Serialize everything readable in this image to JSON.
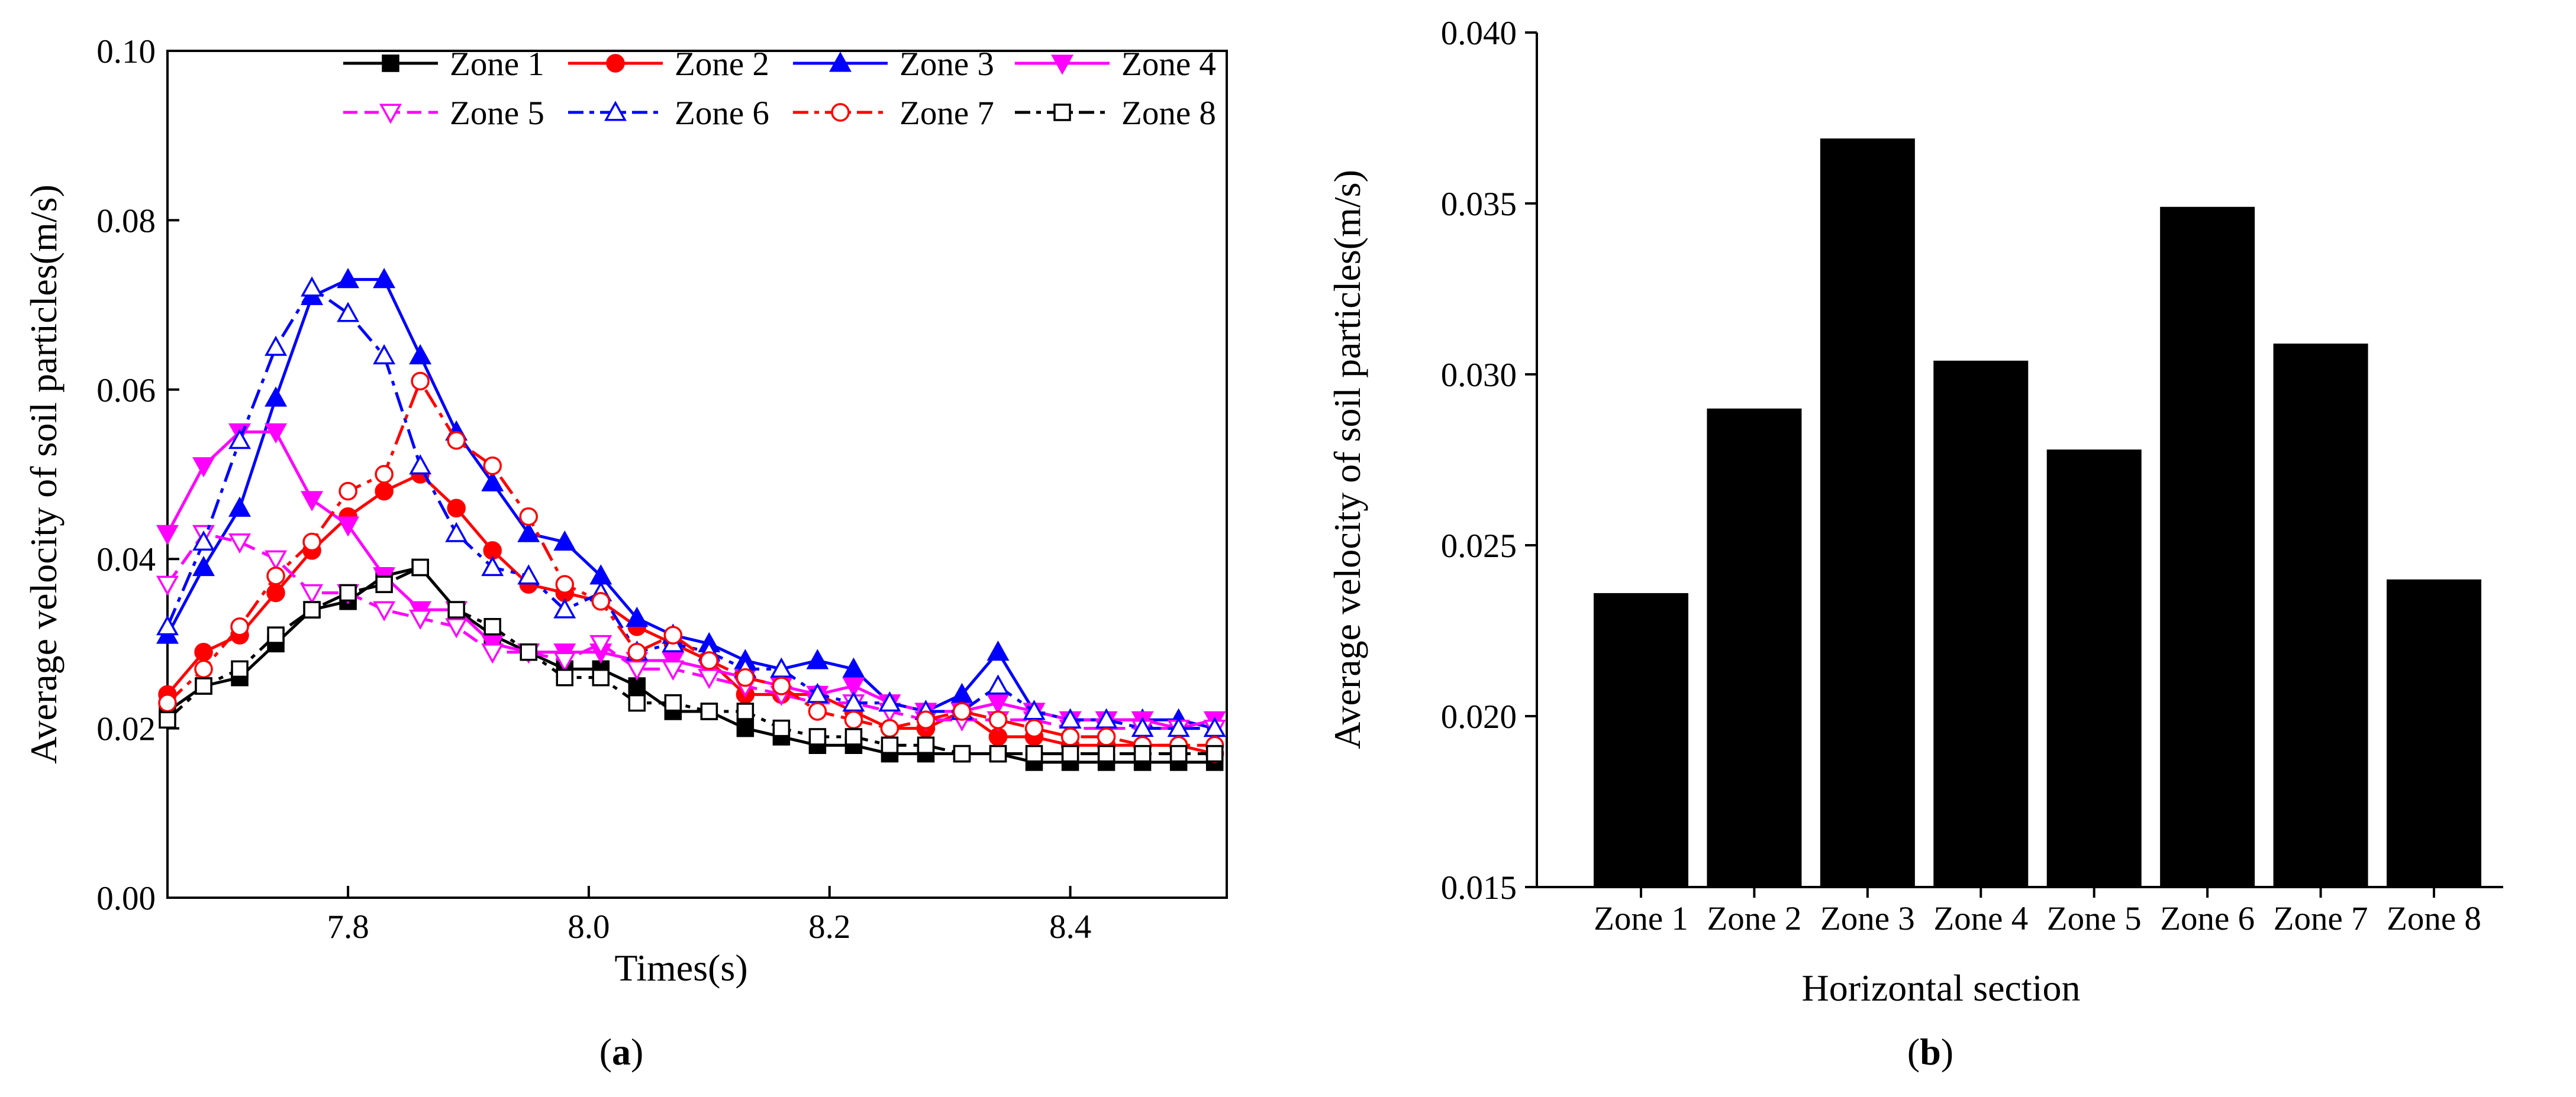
{
  "chart_data": [
    {
      "type": "line",
      "panel_label": "(a)",
      "panel_letter": "a",
      "xlabel": "Times(s)",
      "ylabel": "Average velocity of soil particles(m/s)",
      "xlim": [
        7.65,
        8.53
      ],
      "ylim": [
        0.0,
        0.1
      ],
      "xticks": [
        7.8,
        8.0,
        8.2,
        8.4
      ],
      "xtick_labels": [
        "7.8",
        "8.0",
        "8.2",
        "8.4"
      ],
      "yticks": [
        0.0,
        0.02,
        0.04,
        0.06,
        0.08,
        0.1
      ],
      "ytick_labels": [
        "0.00",
        "0.02",
        "0.04",
        "0.06",
        "0.08",
        "0.10"
      ],
      "legend_position": "top-right",
      "x": [
        7.65,
        7.68,
        7.71,
        7.74,
        7.77,
        7.8,
        7.83,
        7.86,
        7.89,
        7.92,
        7.95,
        7.98,
        8.01,
        8.04,
        8.07,
        8.1,
        8.13,
        8.16,
        8.19,
        8.22,
        8.25,
        8.28,
        8.31,
        8.34,
        8.37,
        8.4,
        8.43,
        8.46,
        8.49,
        8.52
      ],
      "series": [
        {
          "name": "Zone 1",
          "color": "#000000",
          "marker": "square-filled",
          "dash": "solid",
          "values": [
            0.022,
            0.025,
            0.026,
            0.03,
            0.034,
            0.035,
            0.038,
            0.039,
            0.034,
            0.031,
            0.029,
            0.027,
            0.027,
            0.025,
            0.022,
            0.022,
            0.02,
            0.019,
            0.018,
            0.018,
            0.017,
            0.017,
            0.017,
            0.017,
            0.016,
            0.016,
            0.016,
            0.016,
            0.016,
            0.016
          ]
        },
        {
          "name": "Zone 2",
          "color": "#ff0000",
          "marker": "circle-filled",
          "dash": "solid",
          "values": [
            0.024,
            0.029,
            0.031,
            0.036,
            0.041,
            0.045,
            0.048,
            0.05,
            0.046,
            0.041,
            0.037,
            0.036,
            0.035,
            0.032,
            0.03,
            0.028,
            0.024,
            0.024,
            0.024,
            0.022,
            0.02,
            0.02,
            0.022,
            0.019,
            0.019,
            0.018,
            0.018,
            0.018,
            0.018,
            0.017
          ]
        },
        {
          "name": "Zone 3",
          "color": "#0000ff",
          "marker": "triangle-filled",
          "dash": "solid",
          "values": [
            0.031,
            0.039,
            0.046,
            0.059,
            0.071,
            0.073,
            0.073,
            0.064,
            0.055,
            0.049,
            0.043,
            0.042,
            0.038,
            0.033,
            0.031,
            0.03,
            0.028,
            0.027,
            0.028,
            0.027,
            0.023,
            0.022,
            0.024,
            0.029,
            0.022,
            0.021,
            0.021,
            0.021,
            0.021,
            0.02
          ]
        },
        {
          "name": "Zone 4",
          "color": "#ff00ff",
          "marker": "triangle-down-filled",
          "dash": "solid",
          "values": [
            0.043,
            0.051,
            0.055,
            0.055,
            0.047,
            0.044,
            0.038,
            0.034,
            0.034,
            0.03,
            0.029,
            0.029,
            0.029,
            0.028,
            0.028,
            0.027,
            0.026,
            0.025,
            0.024,
            0.025,
            0.023,
            0.022,
            0.022,
            0.023,
            0.022,
            0.021,
            0.021,
            0.021,
            0.02,
            0.021
          ]
        },
        {
          "name": "Zone 5",
          "color": "#ff00ff",
          "marker": "triangle-down-open",
          "dash": "dash",
          "values": [
            0.037,
            0.043,
            0.042,
            0.04,
            0.036,
            0.036,
            0.034,
            0.033,
            0.032,
            0.029,
            0.029,
            0.028,
            0.03,
            0.027,
            0.027,
            0.026,
            0.025,
            0.024,
            0.023,
            0.023,
            0.022,
            0.021,
            0.021,
            0.021,
            0.021,
            0.02,
            0.02,
            0.02,
            0.02,
            0.02
          ]
        },
        {
          "name": "Zone 6",
          "color": "#0000ff",
          "marker": "triangle-open",
          "dash": "dashdot",
          "values": [
            0.032,
            0.042,
            0.054,
            0.065,
            0.072,
            0.069,
            0.064,
            0.051,
            0.043,
            0.039,
            0.038,
            0.034,
            0.036,
            0.029,
            0.03,
            0.029,
            0.027,
            0.027,
            0.024,
            0.023,
            0.023,
            0.022,
            0.022,
            0.025,
            0.022,
            0.021,
            0.021,
            0.02,
            0.02,
            0.02
          ]
        },
        {
          "name": "Zone 7",
          "color": "#ff0000",
          "marker": "circle-open",
          "dash": "dashdot",
          "values": [
            0.023,
            0.027,
            0.032,
            0.038,
            0.042,
            0.048,
            0.05,
            0.061,
            0.054,
            0.051,
            0.045,
            0.037,
            0.035,
            0.029,
            0.031,
            0.028,
            0.026,
            0.025,
            0.022,
            0.021,
            0.02,
            0.021,
            0.022,
            0.021,
            0.02,
            0.019,
            0.019,
            0.018,
            0.018,
            0.018
          ]
        },
        {
          "name": "Zone 8",
          "color": "#000000",
          "marker": "square-open",
          "dash": "dashdot",
          "values": [
            0.021,
            0.025,
            0.027,
            0.031,
            0.034,
            0.036,
            0.037,
            0.039,
            0.034,
            0.032,
            0.029,
            0.026,
            0.026,
            0.023,
            0.023,
            0.022,
            0.022,
            0.02,
            0.019,
            0.019,
            0.018,
            0.018,
            0.017,
            0.017,
            0.017,
            0.017,
            0.017,
            0.017,
            0.017,
            0.017
          ]
        }
      ]
    },
    {
      "type": "bar",
      "panel_label": "(b)",
      "panel_letter": "b",
      "xlabel": "Horizontal section",
      "ylabel": "Average velocity of soil particles(m/s)",
      "categories": [
        "Zone 1",
        "Zone 2",
        "Zone 3",
        "Zone 4",
        "Zone 5",
        "Zone 6",
        "Zone 7",
        "Zone 8"
      ],
      "values": [
        0.0236,
        0.029,
        0.0369,
        0.0304,
        0.0278,
        0.0349,
        0.0309,
        0.024
      ],
      "ylim": [
        0.015,
        0.04
      ],
      "yticks": [
        0.015,
        0.02,
        0.025,
        0.03,
        0.035,
        0.04
      ],
      "ytick_labels": [
        "0.015",
        "0.020",
        "0.025",
        "0.030",
        "0.035",
        "0.040"
      ],
      "bar_color": "#000000"
    }
  ]
}
